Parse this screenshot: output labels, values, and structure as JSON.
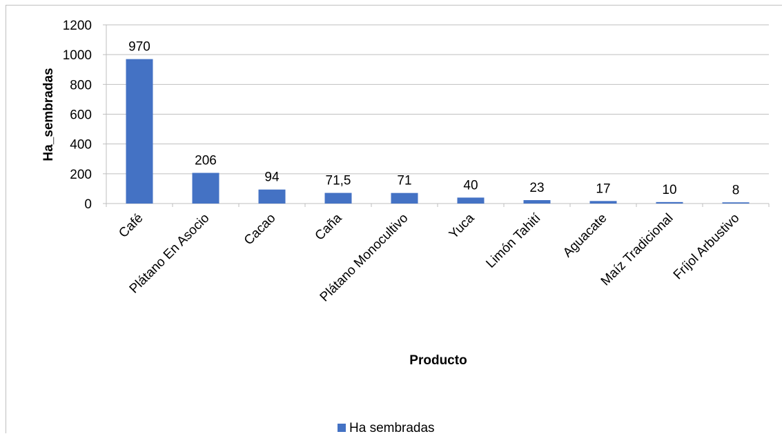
{
  "chart_data": {
    "type": "bar",
    "title": "",
    "xlabel": "Producto",
    "ylabel": "Ha_sembradas",
    "ylim": [
      0,
      1200
    ],
    "yticks": [
      "0",
      "200",
      "400",
      "600",
      "800",
      "1000",
      "1200"
    ],
    "grid": true,
    "legend_position": "bottom",
    "categories": [
      "Café",
      "Plátano En Asocio",
      "Cacao",
      "Caña",
      "Plátano Monocultivo",
      "Yuca",
      "Limón Tahití",
      "Aguacate",
      "Maíz Tradicional",
      "Fríjol Arbustivo"
    ],
    "series": [
      {
        "name": "Ha sembradas",
        "color": "#4472c4",
        "values": [
          970,
          206,
          94,
          71.5,
          71,
          40,
          23,
          17,
          10,
          8
        ],
        "labels": [
          "970",
          "206",
          "94",
          "71,5",
          "71",
          "40",
          "23",
          "17",
          "10",
          "8"
        ]
      }
    ]
  }
}
